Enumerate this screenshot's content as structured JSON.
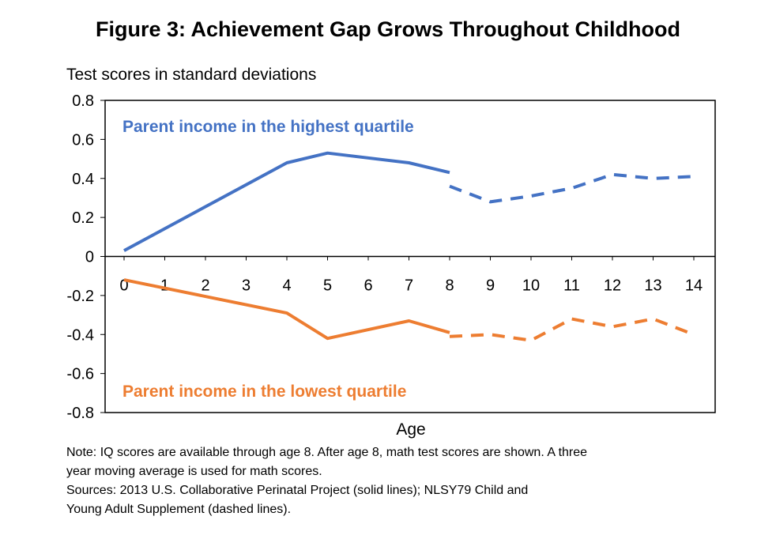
{
  "chart_data": {
    "type": "line",
    "title": "Figure 3: Achievement Gap Grows Throughout Childhood",
    "ylabel": "Test scores in standard deviations",
    "xlabel": "Age",
    "ylim": [
      -0.8,
      0.8
    ],
    "xlim": [
      0,
      14
    ],
    "y_ticks": [
      "0.8",
      "0.6",
      "0.4",
      "0.2",
      "0",
      "-0.2",
      "-0.4",
      "-0.6",
      "-0.8"
    ],
    "x_ticks": [
      "0",
      "1",
      "2",
      "3",
      "4",
      "5",
      "6",
      "7",
      "8",
      "9",
      "10",
      "11",
      "12",
      "13",
      "14"
    ],
    "grid": false,
    "series": [
      {
        "name": "Parent income in the highest quartile",
        "color": "#4472C4",
        "segments": [
          {
            "style": "solid",
            "x": [
              0,
              4,
              5,
              7,
              8
            ],
            "y": [
              0.03,
              0.48,
              0.53,
              0.48,
              0.43
            ]
          },
          {
            "style": "dashed",
            "x": [
              8,
              9,
              10,
              11,
              12,
              13,
              14
            ],
            "y": [
              0.36,
              0.28,
              0.31,
              0.35,
              0.42,
              0.4,
              0.41
            ]
          }
        ]
      },
      {
        "name": "Parent income in the lowest quartile",
        "color": "#ED7D31",
        "segments": [
          {
            "style": "solid",
            "x": [
              0,
              4,
              5,
              7,
              8
            ],
            "y": [
              -0.12,
              -0.29,
              -0.42,
              -0.33,
              -0.39
            ]
          },
          {
            "style": "dashed",
            "x": [
              8,
              9,
              10,
              11,
              12,
              13,
              14
            ],
            "y": [
              -0.41,
              -0.4,
              -0.43,
              -0.32,
              -0.36,
              -0.32,
              -0.4
            ]
          }
        ]
      }
    ]
  },
  "notes": {
    "line1": "Note: IQ scores are available through age 8. After age 8, math test scores are shown. A three",
    "line2": "year moving average is used for math scores.",
    "line3": "Sources: 2013 U.S. Collaborative Perinatal Project (solid lines); NLSY79 Child and",
    "line4": "Young Adult Supplement (dashed lines)."
  }
}
